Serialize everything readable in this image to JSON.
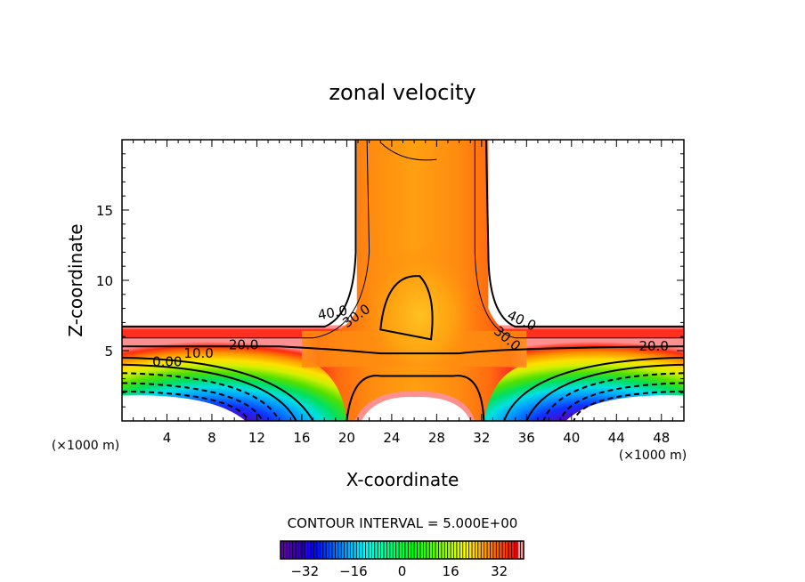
{
  "chart_data": {
    "type": "contour",
    "title": "zonal velocity",
    "xlabel": "X-coordinate",
    "ylabel": "Z-coordinate",
    "x_unit_label": "(×1000 m)",
    "y_unit_label": "(×1000 m)",
    "xlim": [
      0,
      50
    ],
    "ylim": [
      0,
      20
    ],
    "x_ticks": [
      4,
      8,
      12,
      16,
      20,
      24,
      28,
      32,
      36,
      40,
      44,
      48
    ],
    "y_ticks": [
      5,
      10,
      15
    ],
    "contour_interval_text": "CONTOUR INTERVAL = 5.000E+00",
    "contour_interval": 5,
    "contour_labels": [
      "40.0",
      "30.0",
      "20.0",
      "10.0",
      "0.00",
      "40.0",
      "30.0",
      "20.0"
    ],
    "colorbar": {
      "range": [
        -40,
        40
      ],
      "ticks": [
        "-32",
        "-16",
        "0",
        "16",
        "32"
      ],
      "tick_values": [
        -32,
        -16,
        0,
        16,
        32
      ]
    },
    "negative_contours": "dashed",
    "max_value_approx": 44
  }
}
